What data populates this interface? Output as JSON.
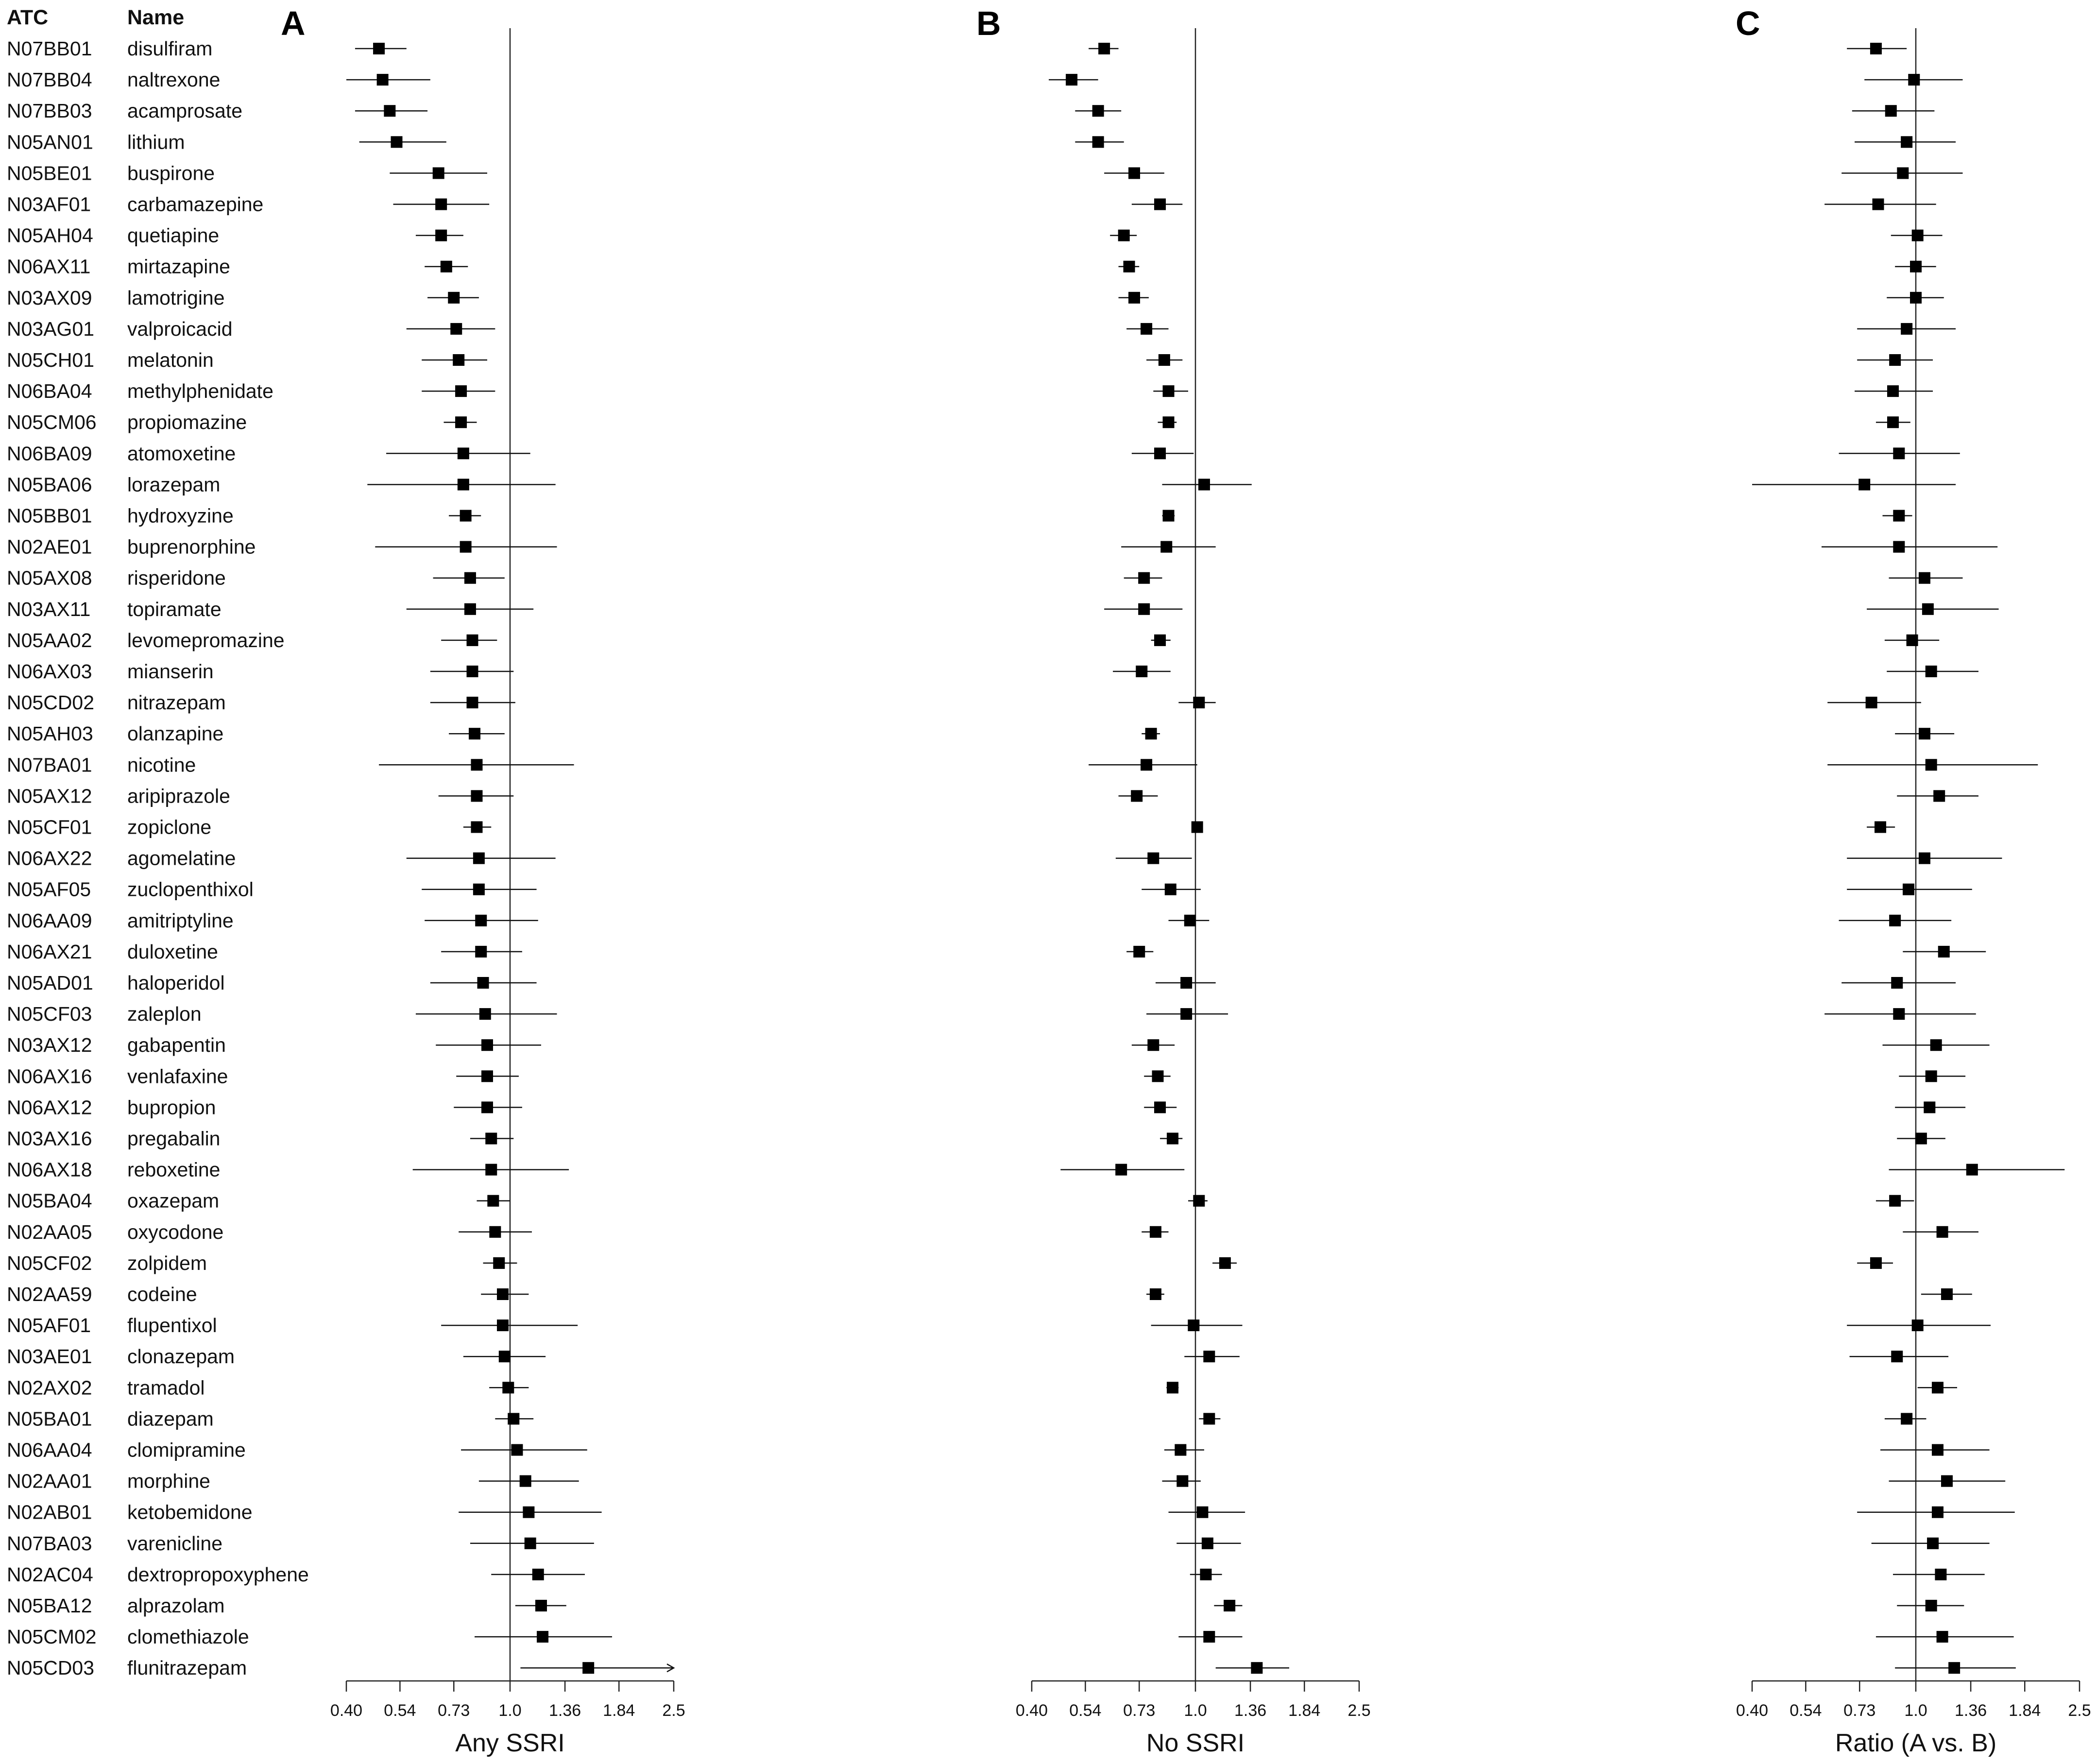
{
  "headers": {
    "atc": "ATC",
    "name": "Name"
  },
  "chart_data": {
    "type": "forest",
    "x_scale": "log",
    "xlim": [
      0.4,
      2.5
    ],
    "reference_line": 1.0,
    "tick_values": [
      0.4,
      0.54,
      0.73,
      1.0,
      1.36,
      1.84,
      2.5
    ],
    "tick_labels": [
      "0.40",
      "0.54",
      "0.73",
      "1.0",
      "1.36",
      "1.84",
      "2.5"
    ],
    "panels": [
      {
        "id": "A",
        "label": "A",
        "xlabel": "Any SSRI"
      },
      {
        "id": "B",
        "label": "B",
        "xlabel": "No SSRI"
      },
      {
        "id": "C",
        "label": "C",
        "xlabel": "Ratio (A vs. B)"
      }
    ],
    "rows": [
      {
        "atc": "N07BB01",
        "name": "disulfiram",
        "A": [
          0.48,
          0.42,
          0.56
        ],
        "B": [
          0.6,
          0.55,
          0.65
        ],
        "C": [
          0.8,
          0.68,
          0.95
        ]
      },
      {
        "atc": "N07BB04",
        "name": "naltrexone",
        "A": [
          0.49,
          0.4,
          0.64
        ],
        "B": [
          0.5,
          0.44,
          0.58
        ],
        "C": [
          0.99,
          0.75,
          1.3
        ]
      },
      {
        "atc": "N07BB03",
        "name": "acamprosate",
        "A": [
          0.51,
          0.42,
          0.63
        ],
        "B": [
          0.58,
          0.51,
          0.66
        ],
        "C": [
          0.87,
          0.7,
          1.11
        ]
      },
      {
        "atc": "N05AN01",
        "name": "lithium",
        "A": [
          0.53,
          0.43,
          0.7
        ],
        "B": [
          0.58,
          0.51,
          0.67
        ],
        "C": [
          0.95,
          0.71,
          1.25
        ]
      },
      {
        "atc": "N05BE01",
        "name": "buspirone",
        "A": [
          0.67,
          0.51,
          0.88
        ],
        "B": [
          0.71,
          0.6,
          0.84
        ],
        "C": [
          0.93,
          0.66,
          1.3
        ]
      },
      {
        "atc": "N03AF01",
        "name": "carbamazepine",
        "A": [
          0.68,
          0.52,
          0.89
        ],
        "B": [
          0.82,
          0.7,
          0.93
        ],
        "C": [
          0.81,
          0.6,
          1.12
        ]
      },
      {
        "atc": "N05AH04",
        "name": "quetiapine",
        "A": [
          0.68,
          0.59,
          0.77
        ],
        "B": [
          0.67,
          0.62,
          0.72
        ],
        "C": [
          1.01,
          0.87,
          1.16
        ]
      },
      {
        "atc": "N06AX11",
        "name": "mirtazapine",
        "A": [
          0.7,
          0.62,
          0.79
        ],
        "B": [
          0.69,
          0.65,
          0.73
        ],
        "C": [
          1.0,
          0.89,
          1.12
        ]
      },
      {
        "atc": "N03AX09",
        "name": "lamotrigine",
        "A": [
          0.73,
          0.63,
          0.84
        ],
        "B": [
          0.71,
          0.65,
          0.77
        ],
        "C": [
          1.0,
          0.85,
          1.17
        ]
      },
      {
        "atc": "N03AG01",
        "name": "valproicacid",
        "A": [
          0.74,
          0.56,
          0.92
        ],
        "B": [
          0.76,
          0.68,
          0.86
        ],
        "C": [
          0.95,
          0.72,
          1.25
        ]
      },
      {
        "atc": "N05CH01",
        "name": "melatonin",
        "A": [
          0.75,
          0.61,
          0.88
        ],
        "B": [
          0.84,
          0.76,
          0.93
        ],
        "C": [
          0.89,
          0.72,
          1.1
        ]
      },
      {
        "atc": "N06BA04",
        "name": "methylphenidate",
        "A": [
          0.76,
          0.61,
          0.92
        ],
        "B": [
          0.86,
          0.79,
          0.96
        ],
        "C": [
          0.88,
          0.71,
          1.1
        ]
      },
      {
        "atc": "N05CM06",
        "name": "propiomazine",
        "A": [
          0.76,
          0.69,
          0.83
        ],
        "B": [
          0.86,
          0.81,
          0.9
        ],
        "C": [
          0.88,
          0.8,
          0.97
        ]
      },
      {
        "atc": "N06BA09",
        "name": "atomoxetine",
        "A": [
          0.77,
          0.5,
          1.12
        ],
        "B": [
          0.82,
          0.7,
          0.99
        ],
        "C": [
          0.91,
          0.65,
          1.28
        ]
      },
      {
        "atc": "N05BA06",
        "name": "lorazepam",
        "A": [
          0.77,
          0.45,
          1.29
        ],
        "B": [
          1.05,
          0.83,
          1.37
        ],
        "C": [
          0.75,
          0.4,
          1.25
        ]
      },
      {
        "atc": "N05BB01",
        "name": "hydroxyzine",
        "A": [
          0.78,
          0.71,
          0.85
        ],
        "B": [
          0.86,
          0.83,
          0.89
        ],
        "C": [
          0.91,
          0.83,
          0.98
        ]
      },
      {
        "atc": "N02AE01",
        "name": "buprenorphine",
        "A": [
          0.78,
          0.47,
          1.3
        ],
        "B": [
          0.85,
          0.66,
          1.12
        ],
        "C": [
          0.91,
          0.59,
          1.58
        ]
      },
      {
        "atc": "N05AX08",
        "name": "risperidone",
        "A": [
          0.8,
          0.65,
          0.97
        ],
        "B": [
          0.75,
          0.67,
          0.83
        ],
        "C": [
          1.05,
          0.86,
          1.3
        ]
      },
      {
        "atc": "N03AX11",
        "name": "topiramate",
        "A": [
          0.8,
          0.56,
          1.14
        ],
        "B": [
          0.75,
          0.6,
          0.93
        ],
        "C": [
          1.07,
          0.76,
          1.59
        ]
      },
      {
        "atc": "N05AA02",
        "name": "levomepromazine",
        "A": [
          0.81,
          0.68,
          0.93
        ],
        "B": [
          0.82,
          0.78,
          0.87
        ],
        "C": [
          0.98,
          0.84,
          1.14
        ]
      },
      {
        "atc": "N06AX03",
        "name": "mianserin",
        "A": [
          0.81,
          0.64,
          1.02
        ],
        "B": [
          0.74,
          0.63,
          0.87
        ],
        "C": [
          1.09,
          0.85,
          1.42
        ]
      },
      {
        "atc": "N05CD02",
        "name": "nitrazepam",
        "A": [
          0.81,
          0.64,
          1.03
        ],
        "B": [
          1.02,
          0.91,
          1.12
        ],
        "C": [
          0.78,
          0.61,
          1.03
        ]
      },
      {
        "atc": "N05AH03",
        "name": "olanzapine",
        "A": [
          0.82,
          0.71,
          0.97
        ],
        "B": [
          0.78,
          0.74,
          0.82
        ],
        "C": [
          1.05,
          0.89,
          1.24
        ]
      },
      {
        "atc": "N07BA01",
        "name": "nicotine",
        "A": [
          0.83,
          0.48,
          1.43
        ],
        "B": [
          0.76,
          0.55,
          1.01
        ],
        "C": [
          1.09,
          0.61,
          1.98
        ]
      },
      {
        "atc": "N05AX12",
        "name": "aripiprazole",
        "A": [
          0.83,
          0.67,
          1.02
        ],
        "B": [
          0.72,
          0.65,
          0.81
        ],
        "C": [
          1.14,
          0.9,
          1.42
        ]
      },
      {
        "atc": "N05CF01",
        "name": "zopiclone",
        "A": [
          0.83,
          0.77,
          0.9
        ],
        "B": [
          1.01,
          0.98,
          1.04
        ],
        "C": [
          0.82,
          0.76,
          0.89
        ]
      },
      {
        "atc": "N06AX22",
        "name": "agomelatine",
        "A": [
          0.84,
          0.56,
          1.29
        ],
        "B": [
          0.79,
          0.64,
          0.98
        ],
        "C": [
          1.05,
          0.68,
          1.62
        ]
      },
      {
        "atc": "N05AF05",
        "name": "zuclopenthixol",
        "A": [
          0.84,
          0.61,
          1.16
        ],
        "B": [
          0.87,
          0.74,
          1.03
        ],
        "C": [
          0.96,
          0.68,
          1.37
        ]
      },
      {
        "atc": "N06AA09",
        "name": "amitriptyline",
        "A": [
          0.85,
          0.62,
          1.17
        ],
        "B": [
          0.97,
          0.86,
          1.08
        ],
        "C": [
          0.89,
          0.65,
          1.22
        ]
      },
      {
        "atc": "N06AX21",
        "name": "duloxetine",
        "A": [
          0.85,
          0.68,
          1.07
        ],
        "B": [
          0.73,
          0.68,
          0.79
        ],
        "C": [
          1.17,
          0.93,
          1.48
        ]
      },
      {
        "atc": "N05AD01",
        "name": "haloperidol",
        "A": [
          0.86,
          0.64,
          1.16
        ],
        "B": [
          0.95,
          0.8,
          1.12
        ],
        "C": [
          0.9,
          0.66,
          1.25
        ]
      },
      {
        "atc": "N05CF03",
        "name": "zaleplon",
        "A": [
          0.87,
          0.59,
          1.3
        ],
        "B": [
          0.95,
          0.76,
          1.2
        ],
        "C": [
          0.91,
          0.6,
          1.4
        ]
      },
      {
        "atc": "N03AX12",
        "name": "gabapentin",
        "A": [
          0.88,
          0.66,
          1.19
        ],
        "B": [
          0.79,
          0.7,
          0.89
        ],
        "C": [
          1.12,
          0.83,
          1.51
        ]
      },
      {
        "atc": "N06AX16",
        "name": "venlafaxine",
        "A": [
          0.88,
          0.74,
          1.05
        ],
        "B": [
          0.81,
          0.75,
          0.87
        ],
        "C": [
          1.09,
          0.91,
          1.32
        ]
      },
      {
        "atc": "N06AX12",
        "name": "bupropion",
        "A": [
          0.88,
          0.73,
          1.07
        ],
        "B": [
          0.82,
          0.75,
          0.9
        ],
        "C": [
          1.08,
          0.89,
          1.32
        ]
      },
      {
        "atc": "N03AX16",
        "name": "pregabalin",
        "A": [
          0.9,
          0.8,
          1.02
        ],
        "B": [
          0.88,
          0.82,
          0.93
        ],
        "C": [
          1.03,
          0.9,
          1.18
        ]
      },
      {
        "atc": "N06AX18",
        "name": "reboxetine",
        "A": [
          0.9,
          0.58,
          1.39
        ],
        "B": [
          0.66,
          0.47,
          0.94
        ],
        "C": [
          1.37,
          0.86,
          2.3
        ]
      },
      {
        "atc": "N05BA04",
        "name": "oxazepam",
        "A": [
          0.91,
          0.83,
          1.0
        ],
        "B": [
          1.02,
          0.96,
          1.07
        ],
        "C": [
          0.89,
          0.8,
          0.99
        ]
      },
      {
        "atc": "N02AA05",
        "name": "oxycodone",
        "A": [
          0.92,
          0.75,
          1.13
        ],
        "B": [
          0.8,
          0.74,
          0.86
        ],
        "C": [
          1.16,
          0.93,
          1.42
        ]
      },
      {
        "atc": "N05CF02",
        "name": "zolpidem",
        "A": [
          0.94,
          0.86,
          1.04
        ],
        "B": [
          1.18,
          1.1,
          1.26
        ],
        "C": [
          0.8,
          0.72,
          0.88
        ]
      },
      {
        "atc": "N02AA59",
        "name": "codeine",
        "A": [
          0.96,
          0.85,
          1.11
        ],
        "B": [
          0.8,
          0.76,
          0.84
        ],
        "C": [
          1.19,
          1.03,
          1.37
        ]
      },
      {
        "atc": "N05AF01",
        "name": "flupentixol",
        "A": [
          0.96,
          0.68,
          1.46
        ],
        "B": [
          0.99,
          0.78,
          1.3
        ],
        "C": [
          1.01,
          0.68,
          1.52
        ]
      },
      {
        "atc": "N03AE01",
        "name": "clonazepam",
        "A": [
          0.97,
          0.77,
          1.22
        ],
        "B": [
          1.08,
          0.94,
          1.28
        ],
        "C": [
          0.9,
          0.69,
          1.2
        ]
      },
      {
        "atc": "N02AX02",
        "name": "tramadol",
        "A": [
          0.99,
          0.89,
          1.11
        ],
        "B": [
          0.88,
          0.85,
          0.91
        ],
        "C": [
          1.13,
          1.01,
          1.26
        ]
      },
      {
        "atc": "N05BA01",
        "name": "diazepam",
        "A": [
          1.02,
          0.92,
          1.14
        ],
        "B": [
          1.08,
          1.02,
          1.15
        ],
        "C": [
          0.95,
          0.84,
          1.06
        ]
      },
      {
        "atc": "N06AA04",
        "name": "clomipramine",
        "A": [
          1.04,
          0.76,
          1.54
        ],
        "B": [
          0.92,
          0.84,
          1.05
        ],
        "C": [
          1.13,
          0.82,
          1.51
        ]
      },
      {
        "atc": "N02AA01",
        "name": "morphine",
        "A": [
          1.09,
          0.84,
          1.47
        ],
        "B": [
          0.93,
          0.83,
          1.03
        ],
        "C": [
          1.19,
          0.86,
          1.65
        ]
      },
      {
        "atc": "N02AB01",
        "name": "ketobemidone",
        "A": [
          1.11,
          0.75,
          1.67
        ],
        "B": [
          1.04,
          0.86,
          1.32
        ],
        "C": [
          1.13,
          0.72,
          1.74
        ]
      },
      {
        "atc": "N07BA03",
        "name": "varenicline",
        "A": [
          1.12,
          0.8,
          1.6
        ],
        "B": [
          1.07,
          0.9,
          1.29
        ],
        "C": [
          1.1,
          0.78,
          1.51
        ]
      },
      {
        "atc": "N02AC04",
        "name": "dextropropoxyphene",
        "A": [
          1.17,
          0.9,
          1.52
        ],
        "B": [
          1.06,
          0.97,
          1.16
        ],
        "C": [
          1.15,
          0.88,
          1.47
        ]
      },
      {
        "atc": "N05BA12",
        "name": "alprazolam",
        "A": [
          1.19,
          1.03,
          1.37
        ],
        "B": [
          1.21,
          1.11,
          1.3
        ],
        "C": [
          1.09,
          0.9,
          1.31
        ]
      },
      {
        "atc": "N05CM02",
        "name": "clomethiazole",
        "A": [
          1.2,
          0.82,
          1.77
        ],
        "B": [
          1.08,
          0.91,
          1.3
        ],
        "C": [
          1.16,
          0.8,
          1.73
        ]
      },
      {
        "atc": "N05CD03",
        "name": "flunitrazepam",
        "A": [
          1.55,
          1.06,
          2.5
        ],
        "B": [
          1.41,
          1.12,
          1.69
        ],
        "C": [
          1.24,
          0.89,
          1.75
        ]
      }
    ]
  }
}
